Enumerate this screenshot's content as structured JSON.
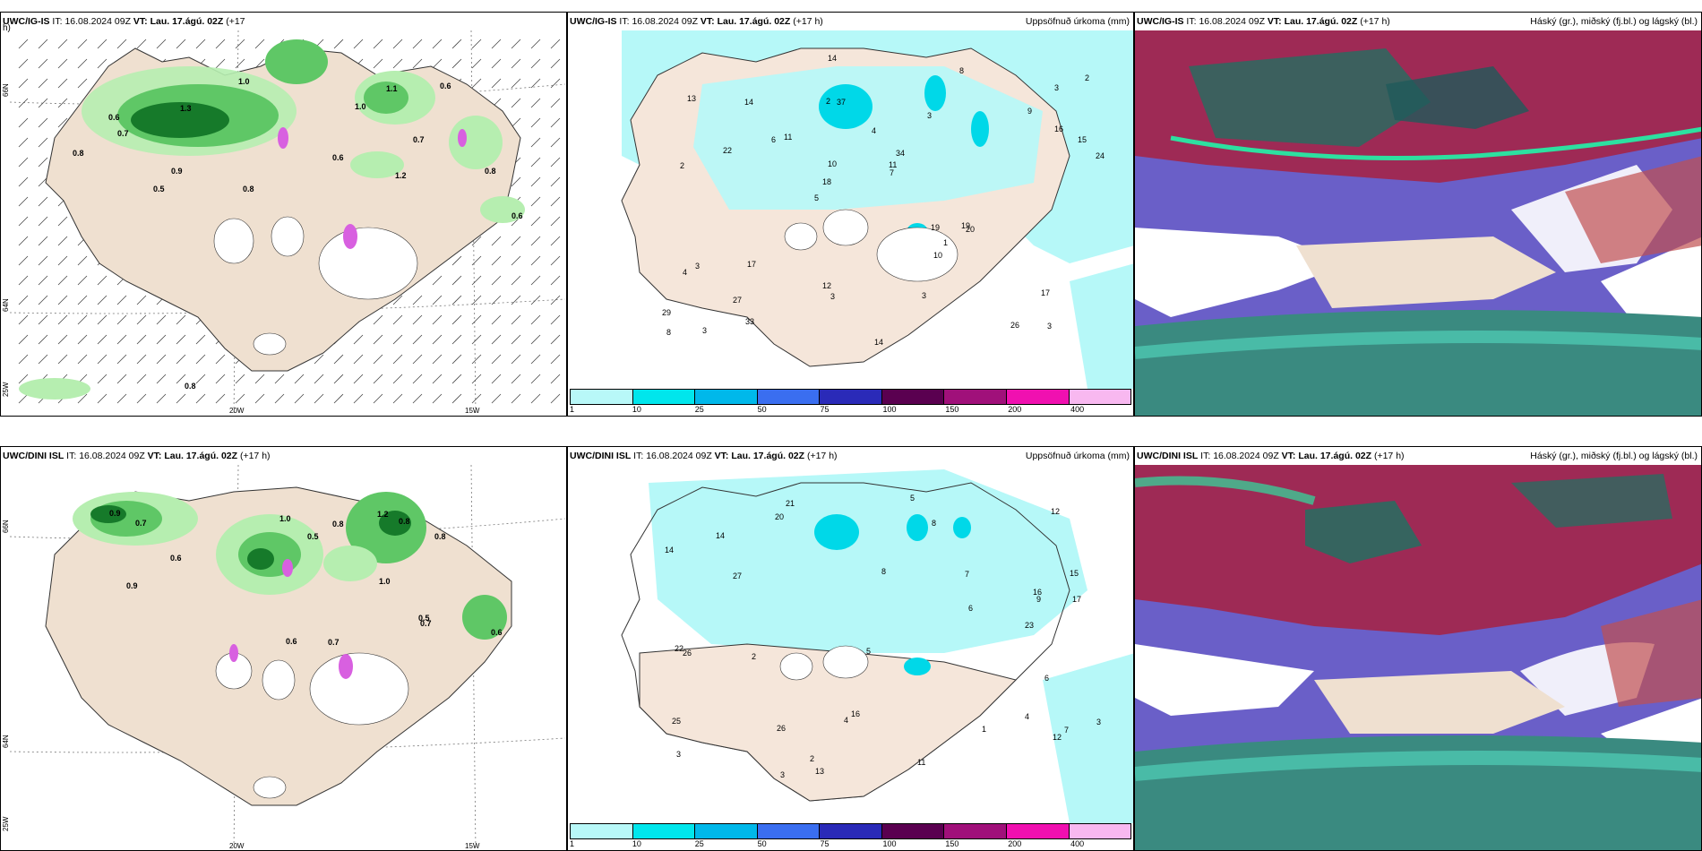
{
  "panels": [
    {
      "model": "UWC/IG-IS",
      "it_label": "IT:",
      "it": "16.08.2024 09Z",
      "vt_label": "VT:",
      "vt": "Lau. 17.ágú. 02Z",
      "lead": "(+17",
      "lead2": "h)",
      "right": ""
    },
    {
      "model": "UWC/IG-IS",
      "it_label": "IT:",
      "it": "16.08.2024 09Z",
      "vt_label": "VT:",
      "vt": "Lau. 17.ágú. 02Z",
      "lead": "(+17 h)",
      "right": "Uppsöfnuð úrkoma (mm)"
    },
    {
      "model": "UWC/IG-IS",
      "it_label": "IT:",
      "it": "16.08.2024 09Z",
      "vt_label": "VT:",
      "vt": "Lau. 17.ágú. 02Z",
      "lead": "(+17 h)",
      "right": "Háský (gr.), miðský (fj.bl.) og lágský (bl.)"
    },
    {
      "model": "UWC/DINI ISL",
      "it_label": "IT:",
      "it": "16.08.2024 09Z",
      "vt_label": "VT:",
      "vt": "Lau. 17.ágú. 02Z",
      "lead": "(+17 h)",
      "right": ""
    },
    {
      "model": "UWC/DINI ISL",
      "it_label": "IT:",
      "it": "16.08.2024 09Z",
      "vt_label": "VT:",
      "vt": "Lau. 17.ágú. 02Z",
      "lead": "(+17 h)",
      "right": "Uppsöfnuð úrkoma (mm)"
    },
    {
      "model": "UWC/DINI ISL",
      "it_label": "IT:",
      "it": "16.08.2024 09Z",
      "vt_label": "VT:",
      "vt": "Lau. 17.ágú. 02Z",
      "lead": "(+17 h)",
      "right": "Háský (gr.), miðský (fj.bl.) og lágský (bl.)"
    }
  ],
  "axis_labels": {
    "lat1": "66N",
    "lat2": "64N",
    "lon1": "20W",
    "lon2": "15W",
    "lon3": "25W"
  },
  "colorbar": {
    "labels": [
      "1",
      "10",
      "25",
      "50",
      "75",
      "100",
      "150",
      "200",
      "400"
    ],
    "colors": [
      "#b8f8f8",
      "#00e6ec",
      "#00b8ea",
      "#3a6ef0",
      "#2a2ab8",
      "#5a0050",
      "#a0107a",
      "#f010b0",
      "#f8b8f0"
    ]
  },
  "precip_values_top": [
    "3",
    "2",
    "3",
    "5",
    "3",
    "3",
    "2",
    "4",
    "3",
    "11",
    "29",
    "27",
    "37",
    "34",
    "20",
    "13",
    "14",
    "24",
    "19",
    "16",
    "18",
    "12",
    "10",
    "14",
    "8",
    "17",
    "26",
    "17",
    "19",
    "14",
    "6",
    "22",
    "10",
    "33",
    "15",
    "11",
    "8",
    "3",
    "7",
    "4",
    "9",
    "2",
    "1",
    "3"
  ],
  "precip_values_bottom": [
    "4",
    "15",
    "7",
    "8",
    "3",
    "21",
    "16",
    "26",
    "12",
    "27",
    "17",
    "14",
    "23",
    "13",
    "25",
    "14",
    "12",
    "20",
    "16",
    "9",
    "22",
    "26",
    "11",
    "6",
    "2",
    "4",
    "5",
    "8",
    "7",
    "3",
    "2",
    "1",
    "3",
    "5",
    "6"
  ],
  "cloud_values_top": [
    "0.8",
    "1.0",
    "0.7",
    "0.5",
    "1.3",
    "0.6",
    "0.8",
    "0.9",
    "1.0",
    "0.6",
    "1.1",
    "0.8",
    "0.7",
    "0.6",
    "1.2",
    "0.6",
    "0.8"
  ],
  "cloud_values_bottom": [
    "0.5",
    "0.7",
    "0.9",
    "0.8",
    "0.6",
    "1.0",
    "0.7",
    "1.2",
    "0.6",
    "0.9",
    "0.5",
    "0.8",
    "1.0",
    "0.7",
    "0.6",
    "0.8"
  ]
}
